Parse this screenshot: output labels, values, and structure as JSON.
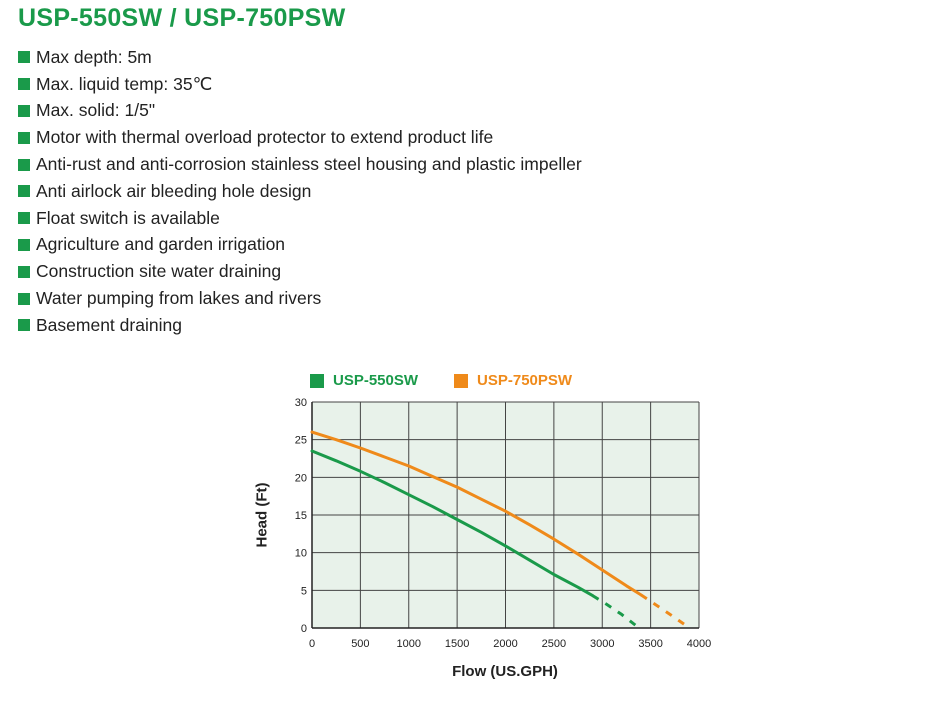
{
  "page": {
    "title": "USP-550SW / USP-750PSW",
    "features": [
      "Max depth: 5m",
      "Max. liquid temp: 35℃",
      "Max. solid: 1/5\"",
      "Motor with thermal overload protector to extend product life",
      "Anti-rust and anti-corrosion stainless steel housing and plastic impeller",
      "Anti airlock air bleeding hole design",
      "Float switch is available",
      "Agriculture and garden irrigation",
      "Construction site water draining",
      "Water pumping from lakes and rivers",
      "Basement draining"
    ]
  },
  "colors": {
    "accent_green": "#1a9a4a",
    "accent_orange": "#ef8a1a",
    "plot_background": "#e8f2ea"
  },
  "chart_data": {
    "type": "line",
    "title": "",
    "xlabel": "Flow (US.GPH)",
    "ylabel": "Head (Ft)",
    "xlim": [
      0,
      4000
    ],
    "ylim": [
      0,
      30
    ],
    "xticks": [
      0,
      500,
      1000,
      1500,
      2000,
      2500,
      3000,
      3500,
      4000
    ],
    "yticks": [
      0,
      5,
      10,
      15,
      20,
      25,
      30
    ],
    "grid": true,
    "legend": "top",
    "series": [
      {
        "name": "USP-550SW",
        "color": "#1a9a4a",
        "x": [
          0,
          250,
          500,
          750,
          1000,
          1250,
          1500,
          1750,
          2000,
          2250,
          2500,
          2750,
          2900
        ],
        "y": [
          23.5,
          22.2,
          20.8,
          19.3,
          17.7,
          16.1,
          14.4,
          12.7,
          10.9,
          9.0,
          7.1,
          5.4,
          4.3
        ],
        "dashed_x": [
          2900,
          3050,
          3200,
          3350
        ],
        "dashed_y": [
          4.3,
          3.1,
          1.8,
          0.3
        ]
      },
      {
        "name": "USP-750PSW",
        "color": "#ef8a1a",
        "x": [
          0,
          250,
          500,
          750,
          1000,
          1250,
          1500,
          1750,
          2000,
          2250,
          2500,
          2750,
          3000,
          3250,
          3400
        ],
        "y": [
          26.0,
          25.0,
          23.9,
          22.7,
          21.5,
          20.1,
          18.7,
          17.1,
          15.5,
          13.7,
          11.8,
          9.8,
          7.7,
          5.6,
          4.4
        ],
        "dashed_x": [
          3400,
          3550,
          3700,
          3880
        ],
        "dashed_y": [
          4.4,
          3.1,
          1.8,
          0.2
        ]
      }
    ]
  }
}
